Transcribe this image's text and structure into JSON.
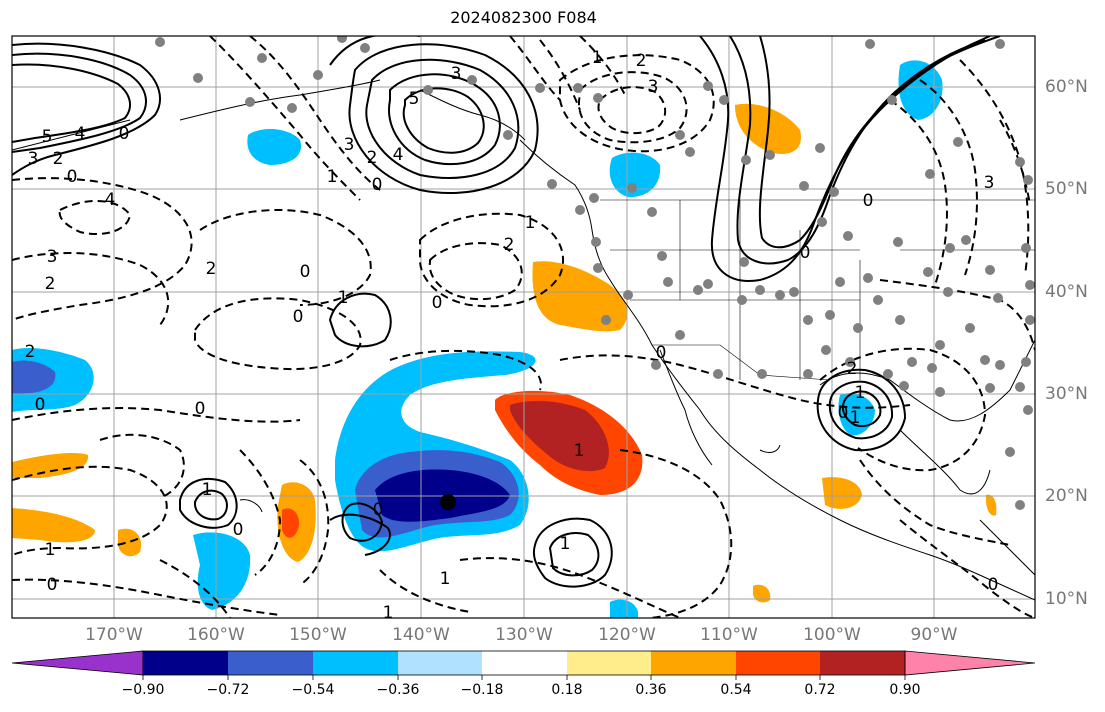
{
  "title": "2024082300 F084",
  "longitude_labels": [
    "170°W",
    "160°W",
    "150°W",
    "140°W",
    "130°W",
    "120°W",
    "110°W",
    "100°W",
    "90°W"
  ],
  "latitude_labels": [
    "60°N",
    "50°N",
    "40°N",
    "30°N",
    "20°N",
    "10°N"
  ],
  "colorbar": {
    "ticks": [
      "−0.90",
      "−0.72",
      "−0.54",
      "−0.36",
      "−0.18",
      "0.18",
      "0.36",
      "0.54",
      "0.72",
      "0.90"
    ],
    "colors": [
      "#9932cc",
      "#00008b",
      "#3a5fcd",
      "#00bfff",
      "#b0e2ff",
      "#ffffff",
      "#ffec8b",
      "#ffa500",
      "#ff4500",
      "#b22222",
      "#ff82ab"
    ]
  },
  "contour_labels": [
    "3",
    "5",
    "4",
    "3",
    "2",
    "0",
    "4",
    "5",
    "4",
    "3",
    "2",
    "0",
    "2",
    "3",
    "2",
    "0",
    "1",
    "2",
    "3",
    "0",
    "1",
    "0",
    "0",
    "1",
    "1",
    "1",
    "0",
    "0",
    "1",
    "1",
    "0",
    "2",
    "3",
    "1",
    "1",
    "2",
    "0",
    "0",
    "0",
    "0",
    "2",
    "0",
    "0",
    "1",
    "1",
    "1",
    "0"
  ],
  "colors": {
    "contour": "#000000",
    "coast": "#000000",
    "grid": "#a0a0a0",
    "station": "#808080",
    "axis_label": "#777777"
  }
}
